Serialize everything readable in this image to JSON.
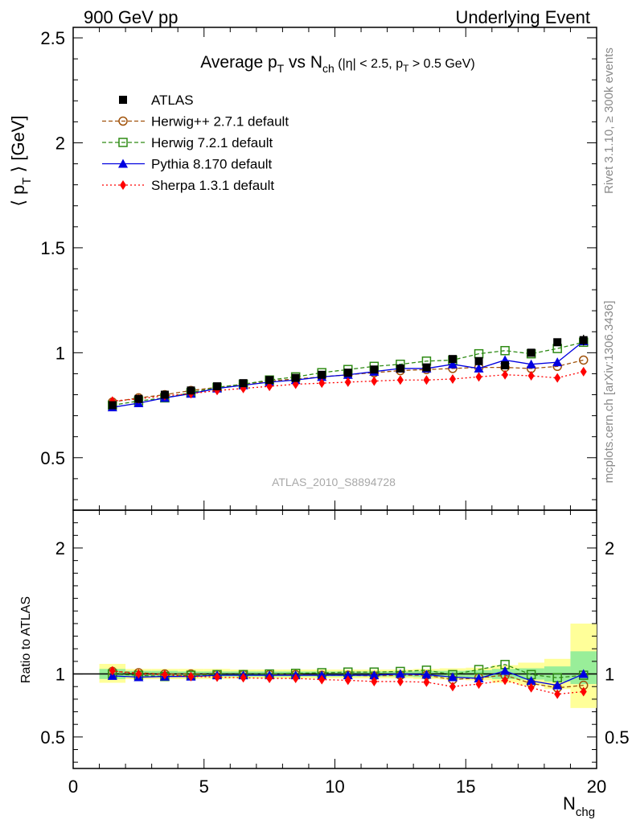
{
  "header": {
    "left": "900 GeV pp",
    "right": "Underlying Event"
  },
  "title": {
    "main": "Average p",
    "sub": "T",
    "vs": " vs N",
    "ch": "ch",
    "cuts_a": " (|η| < 2.5, p",
    "cuts_t": "T",
    "cuts_b": " > 0.5 GeV)"
  },
  "ylabel": {
    "pre": "⟨ p",
    "sub": "T",
    "post": " ⟩ [GeV]"
  },
  "ratio_ylabel": "Ratio to ATLAS",
  "xlabel": {
    "main": "N",
    "sub": "chg"
  },
  "watermark": "ATLAS_2010_S8894728",
  "side_right_top": "Rivet 3.1.10, ≥ 300k events",
  "side_right_bottom": "mcplots.cern.ch [arXiv:1306.3436]",
  "legend": [
    {
      "label": "ATLAS",
      "color": "#000000",
      "marker": "square-filled",
      "line": "none"
    },
    {
      "label": "Herwig++ 2.7.1 default",
      "color": "#a0520a",
      "marker": "circle-open",
      "line": "dashed"
    },
    {
      "label": "Herwig 7.2.1 default",
      "color": "#2e8b14",
      "marker": "square-open",
      "line": "dashed"
    },
    {
      "label": "Pythia 8.170 default",
      "color": "#0000e0",
      "marker": "triangle-filled",
      "line": "solid"
    },
    {
      "label": "Sherpa 1.3.1 default",
      "color": "#ff0000",
      "marker": "diamond-filled",
      "line": "dotted"
    }
  ],
  "chart_data": {
    "type": "line",
    "x": [
      1.5,
      2.5,
      3.5,
      4.5,
      5.5,
      6.5,
      7.5,
      8.5,
      9.5,
      10.5,
      11.5,
      12.5,
      13.5,
      14.5,
      15.5,
      16.5,
      17.5,
      18.5,
      19.5
    ],
    "xlim": [
      0,
      20
    ],
    "x_ticks": [
      "0",
      "5",
      "10",
      "15",
      "20"
    ],
    "main": {
      "ylim": [
        0.25,
        2.55
      ],
      "y_ticks": [
        "0.5",
        "1",
        "1.5",
        "2",
        "2.5"
      ],
      "series": [
        {
          "name": "ATLAS",
          "values": [
            0.75,
            0.78,
            0.8,
            0.82,
            0.84,
            0.855,
            0.87,
            0.88,
            0.895,
            0.905,
            0.92,
            0.925,
            0.93,
            0.97,
            0.96,
            0.94,
            1.0,
            1.05,
            1.06
          ]
        },
        {
          "name": "Herwig++ 2.7.1 default",
          "values": [
            0.765,
            0.785,
            0.8,
            0.82,
            0.835,
            0.85,
            0.865,
            0.875,
            0.885,
            0.895,
            0.905,
            0.915,
            0.92,
            0.925,
            0.93,
            0.93,
            0.925,
            0.935,
            0.965
          ]
        },
        {
          "name": "Herwig 7.2.1 default",
          "values": [
            0.75,
            0.77,
            0.785,
            0.81,
            0.835,
            0.85,
            0.87,
            0.885,
            0.905,
            0.92,
            0.935,
            0.945,
            0.96,
            0.965,
            0.995,
            1.01,
            0.995,
            1.02,
            1.05
          ]
        },
        {
          "name": "Pythia 8.170 default",
          "values": [
            0.74,
            0.76,
            0.785,
            0.805,
            0.83,
            0.845,
            0.86,
            0.87,
            0.885,
            0.895,
            0.91,
            0.925,
            0.925,
            0.945,
            0.925,
            0.965,
            0.945,
            0.955,
            1.055
          ]
        },
        {
          "name": "Sherpa 1.3.1 default",
          "values": [
            0.77,
            0.78,
            0.795,
            0.805,
            0.82,
            0.83,
            0.84,
            0.85,
            0.855,
            0.86,
            0.865,
            0.87,
            0.87,
            0.875,
            0.885,
            0.895,
            0.89,
            0.88,
            0.91
          ]
        }
      ]
    },
    "ratio": {
      "ylim": [
        0.25,
        2.3
      ],
      "y_ticks": [
        "0.5",
        "1",
        "2"
      ],
      "reference": 1,
      "band_yellow": [
        [
          0.93,
          1.08
        ],
        [
          0.96,
          1.04
        ],
        [
          0.96,
          1.04
        ],
        [
          0.96,
          1.04
        ],
        [
          0.96,
          1.04
        ],
        [
          0.965,
          1.035
        ],
        [
          0.965,
          1.035
        ],
        [
          0.965,
          1.035
        ],
        [
          0.965,
          1.035
        ],
        [
          0.965,
          1.035
        ],
        [
          0.965,
          1.035
        ],
        [
          0.965,
          1.035
        ],
        [
          0.96,
          1.04
        ],
        [
          0.955,
          1.045
        ],
        [
          0.95,
          1.05
        ],
        [
          0.93,
          1.07
        ],
        [
          0.91,
          1.09
        ],
        [
          0.88,
          1.12
        ],
        [
          0.73,
          1.4
        ]
      ],
      "band_green": [
        [
          0.96,
          1.04
        ],
        [
          0.975,
          1.025
        ],
        [
          0.975,
          1.025
        ],
        [
          0.98,
          1.02
        ],
        [
          0.98,
          1.02
        ],
        [
          0.98,
          1.02
        ],
        [
          0.98,
          1.02
        ],
        [
          0.98,
          1.02
        ],
        [
          0.98,
          1.02
        ],
        [
          0.98,
          1.02
        ],
        [
          0.98,
          1.02
        ],
        [
          0.98,
          1.02
        ],
        [
          0.975,
          1.025
        ],
        [
          0.975,
          1.025
        ],
        [
          0.97,
          1.03
        ],
        [
          0.96,
          1.04
        ],
        [
          0.955,
          1.045
        ],
        [
          0.94,
          1.06
        ],
        [
          0.92,
          1.18
        ]
      ],
      "series": [
        {
          "name": "Herwig++ 2.7.1 default",
          "values": [
            1.02,
            1.01,
            1.0,
            1.0,
            0.995,
            0.995,
            0.995,
            0.995,
            0.99,
            0.99,
            0.985,
            0.99,
            0.99,
            0.955,
            0.97,
            0.99,
            0.925,
            0.89,
            0.91
          ]
        },
        {
          "name": "Herwig 7.2.1 default",
          "values": [
            1.0,
            0.99,
            0.98,
            0.99,
            0.995,
            0.995,
            1.0,
            1.005,
            1.01,
            1.015,
            1.015,
            1.02,
            1.03,
            0.995,
            1.035,
            1.075,
            0.995,
            0.97,
            0.99
          ]
        },
        {
          "name": "Pythia 8.170 default",
          "values": [
            0.985,
            0.975,
            0.98,
            0.98,
            0.99,
            0.99,
            0.99,
            0.99,
            0.99,
            0.99,
            0.99,
            1.0,
            0.995,
            0.975,
            0.965,
            1.025,
            0.945,
            0.91,
            1.0
          ]
        },
        {
          "name": "Sherpa 1.3.1 default",
          "values": [
            1.025,
            1.0,
            0.995,
            0.98,
            0.975,
            0.97,
            0.965,
            0.965,
            0.955,
            0.95,
            0.94,
            0.94,
            0.935,
            0.9,
            0.92,
            0.95,
            0.89,
            0.84,
            0.86
          ]
        }
      ]
    }
  }
}
